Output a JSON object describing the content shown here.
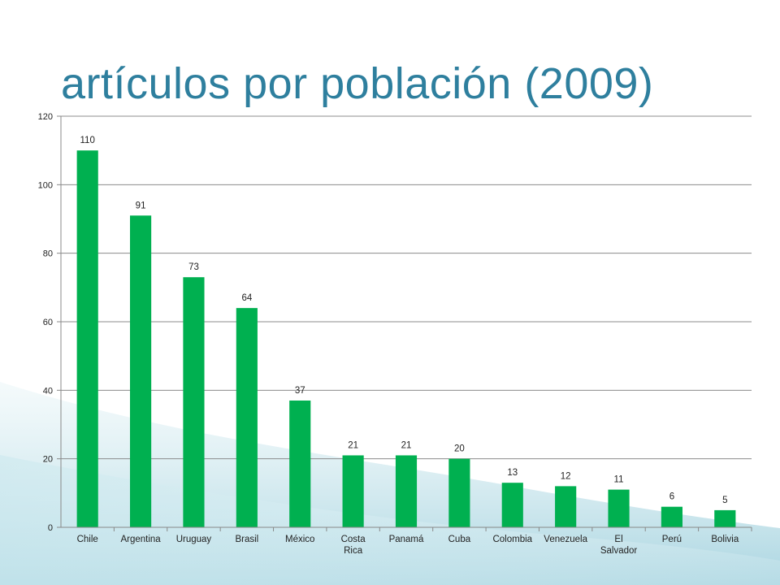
{
  "slide": {
    "title": "artículos por población (2009)",
    "accent_color": "#2e7f9e",
    "background_wave_color": "#b7dde6"
  },
  "chart_data": {
    "type": "bar",
    "title": "",
    "xlabel": "",
    "ylabel": "",
    "categories": [
      "Chile",
      "Argentina",
      "Uruguay",
      "Brasil",
      "México",
      "Costa Rica",
      "Panamá",
      "Cuba",
      "Colombia",
      "Venezuela",
      "El Salvador",
      "Perú",
      "Bolivia"
    ],
    "values": [
      110,
      91,
      73,
      64,
      37,
      21,
      21,
      20,
      13,
      12,
      11,
      6,
      5
    ],
    "data_labels": [
      "110",
      "91",
      "73",
      "64",
      "37",
      "21",
      "21",
      "20",
      "13",
      "12",
      "11",
      "6",
      "5"
    ],
    "ylim": [
      0,
      120
    ],
    "yticks": [
      0,
      20,
      40,
      60,
      80,
      100,
      120
    ],
    "grid": true,
    "legend": "none",
    "bar_color": "#00b050"
  }
}
